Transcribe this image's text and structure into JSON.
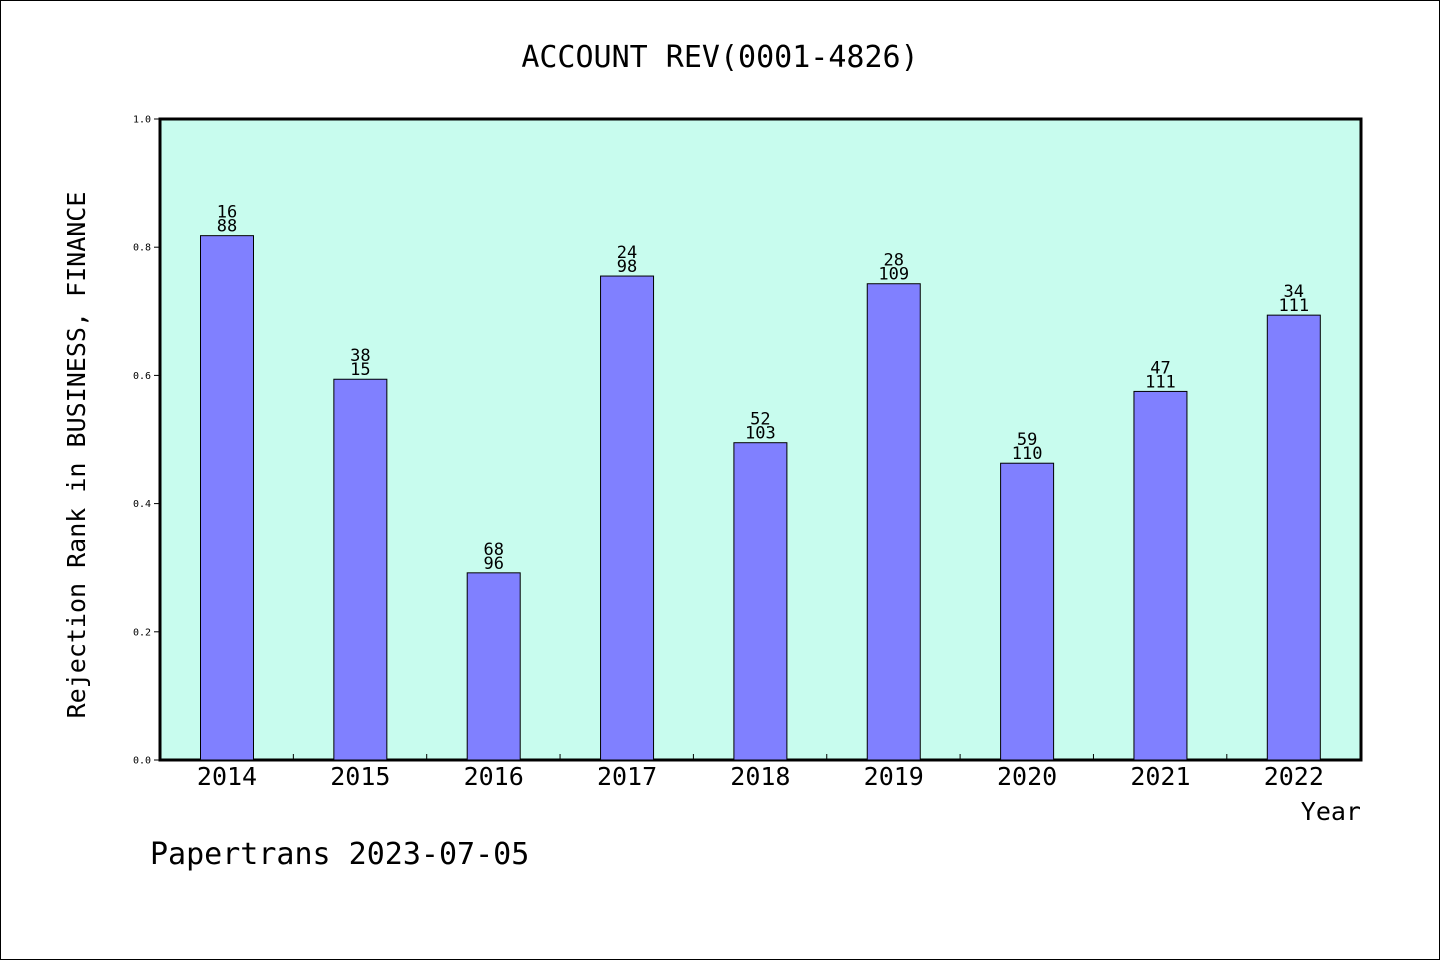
{
  "chart_data": {
    "type": "bar",
    "title": "ACCOUNT REV(0001-4826)",
    "xlabel": "Year",
    "ylabel": "Rejection Rank in BUSINESS, FINANCE",
    "categories": [
      "2014",
      "2015",
      "2016",
      "2017",
      "2018",
      "2019",
      "2020",
      "2021",
      "2022"
    ],
    "values": [
      0.818,
      0.594,
      0.292,
      0.755,
      0.495,
      0.743,
      0.463,
      0.575,
      0.694
    ],
    "labels_top": [
      "16",
      "38",
      "68",
      "24",
      "52",
      "28",
      "59",
      "47",
      "34"
    ],
    "labels_bottom": [
      "88",
      "15",
      "96",
      "98",
      "103",
      "109",
      "110",
      "111",
      "111"
    ],
    "ylim": [
      0,
      1.0
    ],
    "yticks": [
      "0.0",
      "0.2",
      "0.4",
      "0.6",
      "0.8",
      "1.0"
    ],
    "grid": false,
    "colors": {
      "plot_background": "#c8fcee",
      "bar_fill": "#8080ff",
      "bar_edge": "#000000"
    }
  },
  "footer": "Papertrans 2023-07-05"
}
